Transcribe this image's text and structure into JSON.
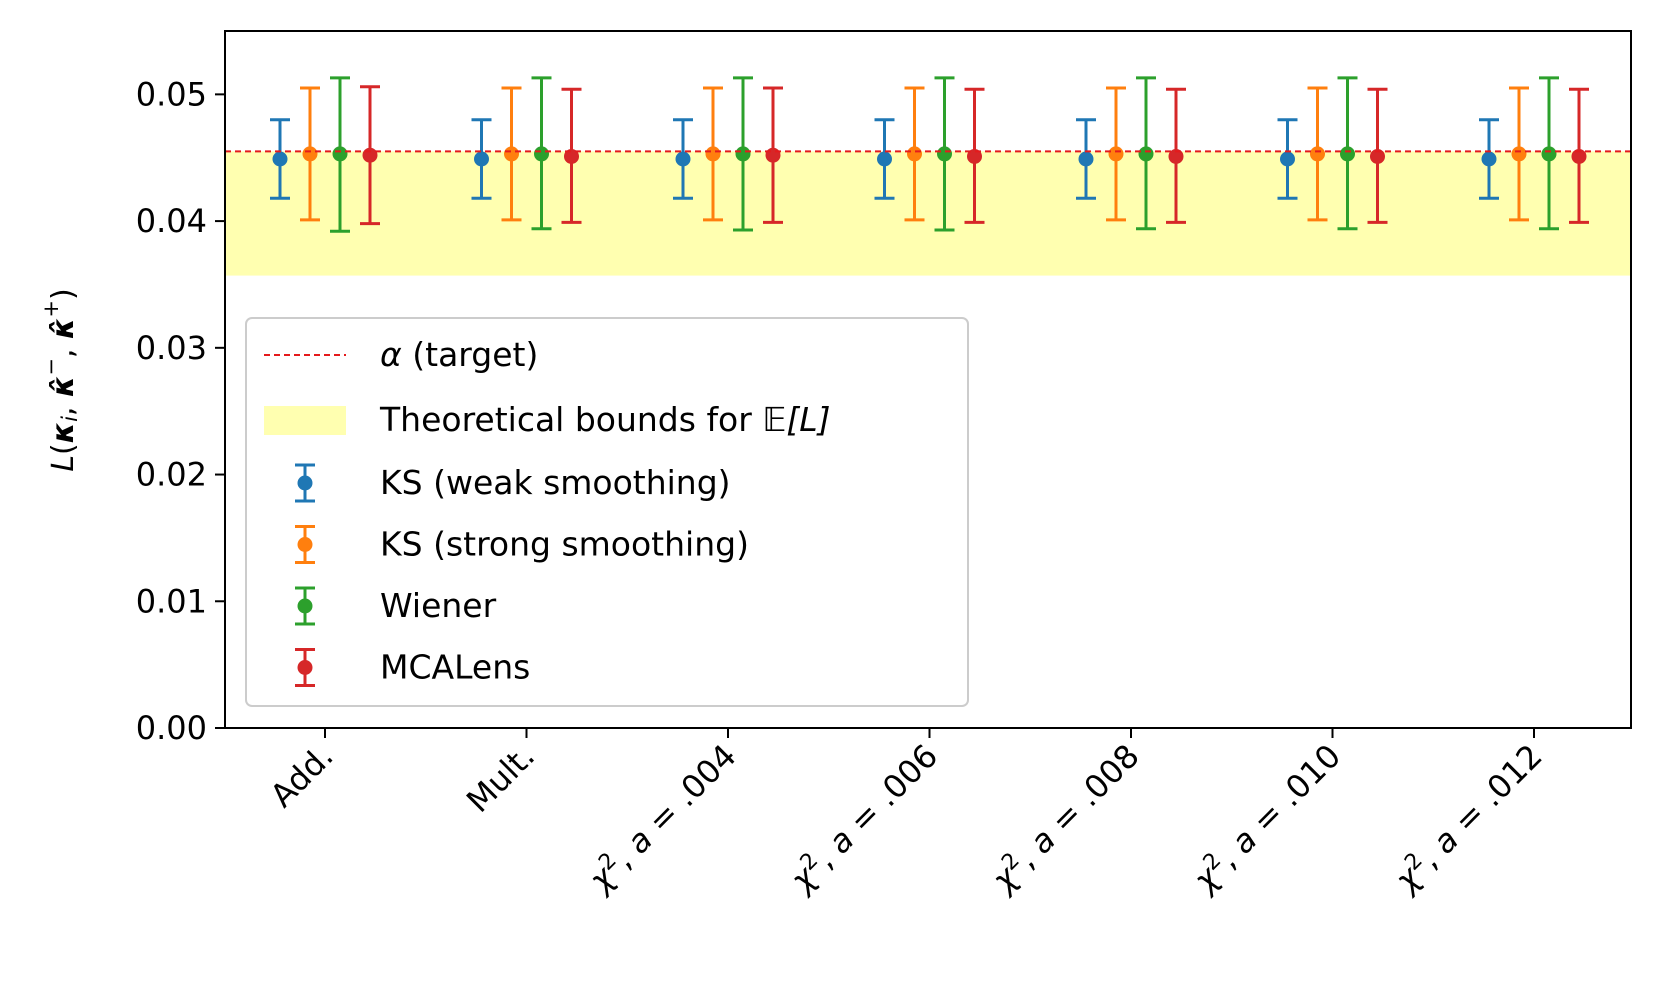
{
  "chart_data": {
    "type": "scatter",
    "categories": [
      "Add.",
      "Mult.",
      "χ², a = .004",
      "χ², a = .006",
      "χ², a = .008",
      "χ², a = .010",
      "χ², a = .012"
    ],
    "category_parts": [
      {
        "main": "Add.",
        "sup": "",
        "rest": ""
      },
      {
        "main": "Mult.",
        "sup": "",
        "rest": ""
      },
      {
        "main": "χ",
        "sup": "2",
        "rest": ", a = .004"
      },
      {
        "main": "χ",
        "sup": "2",
        "rest": ", a = .006"
      },
      {
        "main": "χ",
        "sup": "2",
        "rest": ", a = .008"
      },
      {
        "main": "χ",
        "sup": "2",
        "rest": ", a = .010"
      },
      {
        "main": "χ",
        "sup": "2",
        "rest": ", a = .012"
      }
    ],
    "ylabel": "L(κi, κ̂i−, κ̂i+)",
    "ylabel_parts": {
      "L": "L",
      "k": "κ",
      "sub_i": "i",
      "kh": "κ̂",
      "sup_minus": "−",
      "sup_plus": "+",
      "open": "(",
      "close": ")",
      "comma": ", "
    },
    "ylim": [
      0.0,
      0.055
    ],
    "yticks": [
      0.0,
      0.01,
      0.02,
      0.03,
      0.04,
      0.05
    ],
    "ytick_labels": [
      "0.00",
      "0.01",
      "0.02",
      "0.03",
      "0.04",
      "0.05"
    ],
    "grid": false,
    "legend_position": "center-left",
    "target": {
      "label_symbol": "α",
      "label_text": " (target)",
      "value": 0.0455,
      "color": "#e41a1c"
    },
    "bounds": {
      "label_text": "Theoretical bounds for ",
      "label_E": "𝔼",
      "label_L": "[L]",
      "lower": 0.0357,
      "upper": 0.0455,
      "color": "#ffffb0"
    },
    "series": [
      {
        "name": "KS (weak smoothing)",
        "color": "#1f77b4",
        "values": [
          0.0449,
          0.0449,
          0.0449,
          0.0449,
          0.0449,
          0.0449,
          0.0449
        ],
        "lower": [
          0.0418,
          0.0418,
          0.0418,
          0.0418,
          0.0418,
          0.0418,
          0.0418
        ],
        "upper": [
          0.048,
          0.048,
          0.048,
          0.048,
          0.048,
          0.048,
          0.048
        ]
      },
      {
        "name": "KS (strong smoothing)",
        "color": "#ff7f0e",
        "values": [
          0.0453,
          0.0453,
          0.0453,
          0.0453,
          0.0453,
          0.0453,
          0.0453
        ],
        "lower": [
          0.0401,
          0.0401,
          0.0401,
          0.0401,
          0.0401,
          0.0401,
          0.0401
        ],
        "upper": [
          0.0505,
          0.0505,
          0.0505,
          0.0505,
          0.0505,
          0.0505,
          0.0505
        ]
      },
      {
        "name": "Wiener",
        "color": "#2ca02c",
        "values": [
          0.0453,
          0.0453,
          0.0453,
          0.0453,
          0.0453,
          0.0453,
          0.0453
        ],
        "lower": [
          0.0392,
          0.0394,
          0.0393,
          0.0393,
          0.0394,
          0.0394,
          0.0394
        ],
        "upper": [
          0.0513,
          0.0513,
          0.0513,
          0.0513,
          0.0513,
          0.0513,
          0.0513
        ]
      },
      {
        "name": "MCALens",
        "color": "#d62728",
        "values": [
          0.0452,
          0.0451,
          0.0452,
          0.0451,
          0.0451,
          0.0451,
          0.0451
        ],
        "lower": [
          0.0398,
          0.0399,
          0.0399,
          0.0399,
          0.0399,
          0.0399,
          0.0399
        ],
        "upper": [
          0.0506,
          0.0504,
          0.0505,
          0.0504,
          0.0504,
          0.0504,
          0.0504
        ]
      }
    ]
  }
}
